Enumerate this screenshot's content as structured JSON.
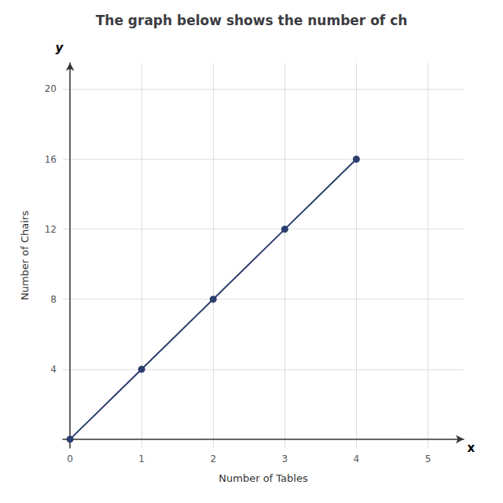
{
  "chart_data": {
    "type": "line",
    "title": "The graph below shows the number of ch",
    "xlabel": "Number of Tables",
    "ylabel": "Number of Chairs",
    "x": [
      0,
      1,
      2,
      3,
      4
    ],
    "values": [
      0,
      4,
      8,
      12,
      16
    ],
    "color": "#2c3e6e",
    "marker": "circle",
    "xlim": [
      -0.1,
      5.5
    ],
    "ylim": [
      -0.5,
      21.5
    ],
    "xticks": [
      0,
      1,
      2,
      3,
      4,
      5
    ],
    "yticks": [
      4,
      8,
      12,
      16,
      20
    ],
    "grid": true,
    "annotations": [
      {
        "text": "x",
        "x": 5.55,
        "y": -0.5
      },
      {
        "text": "y",
        "x": -0.15,
        "y": 22.0
      }
    ]
  }
}
